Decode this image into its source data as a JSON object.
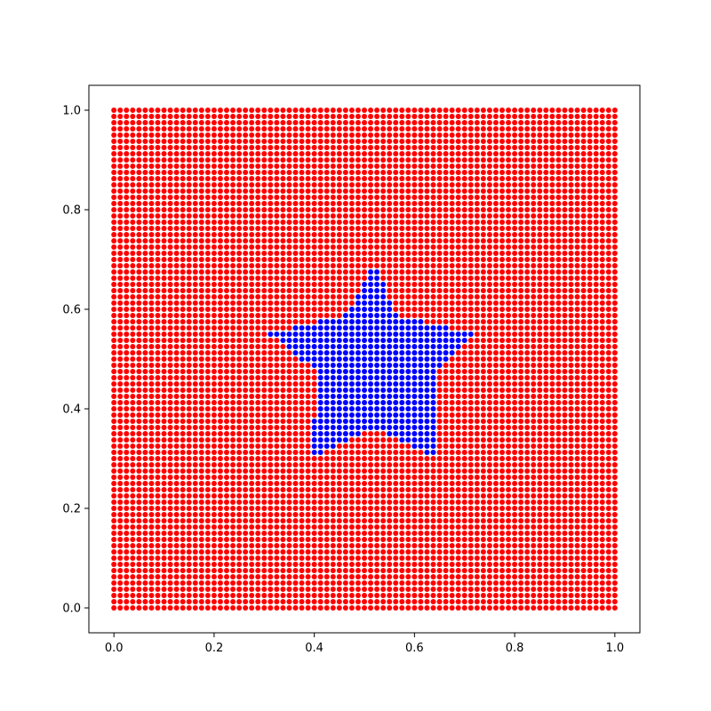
{
  "chart_data": {
    "type": "scatter",
    "title": "",
    "xlabel": "",
    "ylabel": "",
    "xlim": [
      -0.05,
      1.05
    ],
    "ylim": [
      -0.05,
      1.05
    ],
    "grid": false,
    "legend": "none",
    "xticks": [
      0.0,
      0.2,
      0.4,
      0.6,
      0.8,
      1.0
    ],
    "yticks": [
      0.0,
      0.2,
      0.4,
      0.6,
      0.8,
      1.0
    ],
    "xtick_labels": [
      "0.0",
      "0.2",
      "0.4",
      "0.6",
      "0.8",
      "1.0"
    ],
    "ytick_labels": [
      "0.0",
      "0.2",
      "0.4",
      "0.6",
      "0.8",
      "1.0"
    ],
    "grid_points": {
      "x_range": [
        0.0,
        1.0
      ],
      "y_range": [
        0.0,
        1.0
      ],
      "count_per_axis": 81
    },
    "series": [
      {
        "color": "#ff0000",
        "rule": "grid points outside the star"
      },
      {
        "color": "#0000ff",
        "rule": "grid points inside the star"
      }
    ],
    "star_vertices": [
      [
        0.52,
        0.7
      ],
      [
        0.56,
        0.59
      ],
      [
        0.72,
        0.55
      ],
      [
        0.64,
        0.47
      ],
      [
        0.65,
        0.3
      ],
      [
        0.52,
        0.36
      ],
      [
        0.39,
        0.3
      ],
      [
        0.41,
        0.47
      ],
      [
        0.31,
        0.55
      ],
      [
        0.47,
        0.59
      ]
    ]
  }
}
